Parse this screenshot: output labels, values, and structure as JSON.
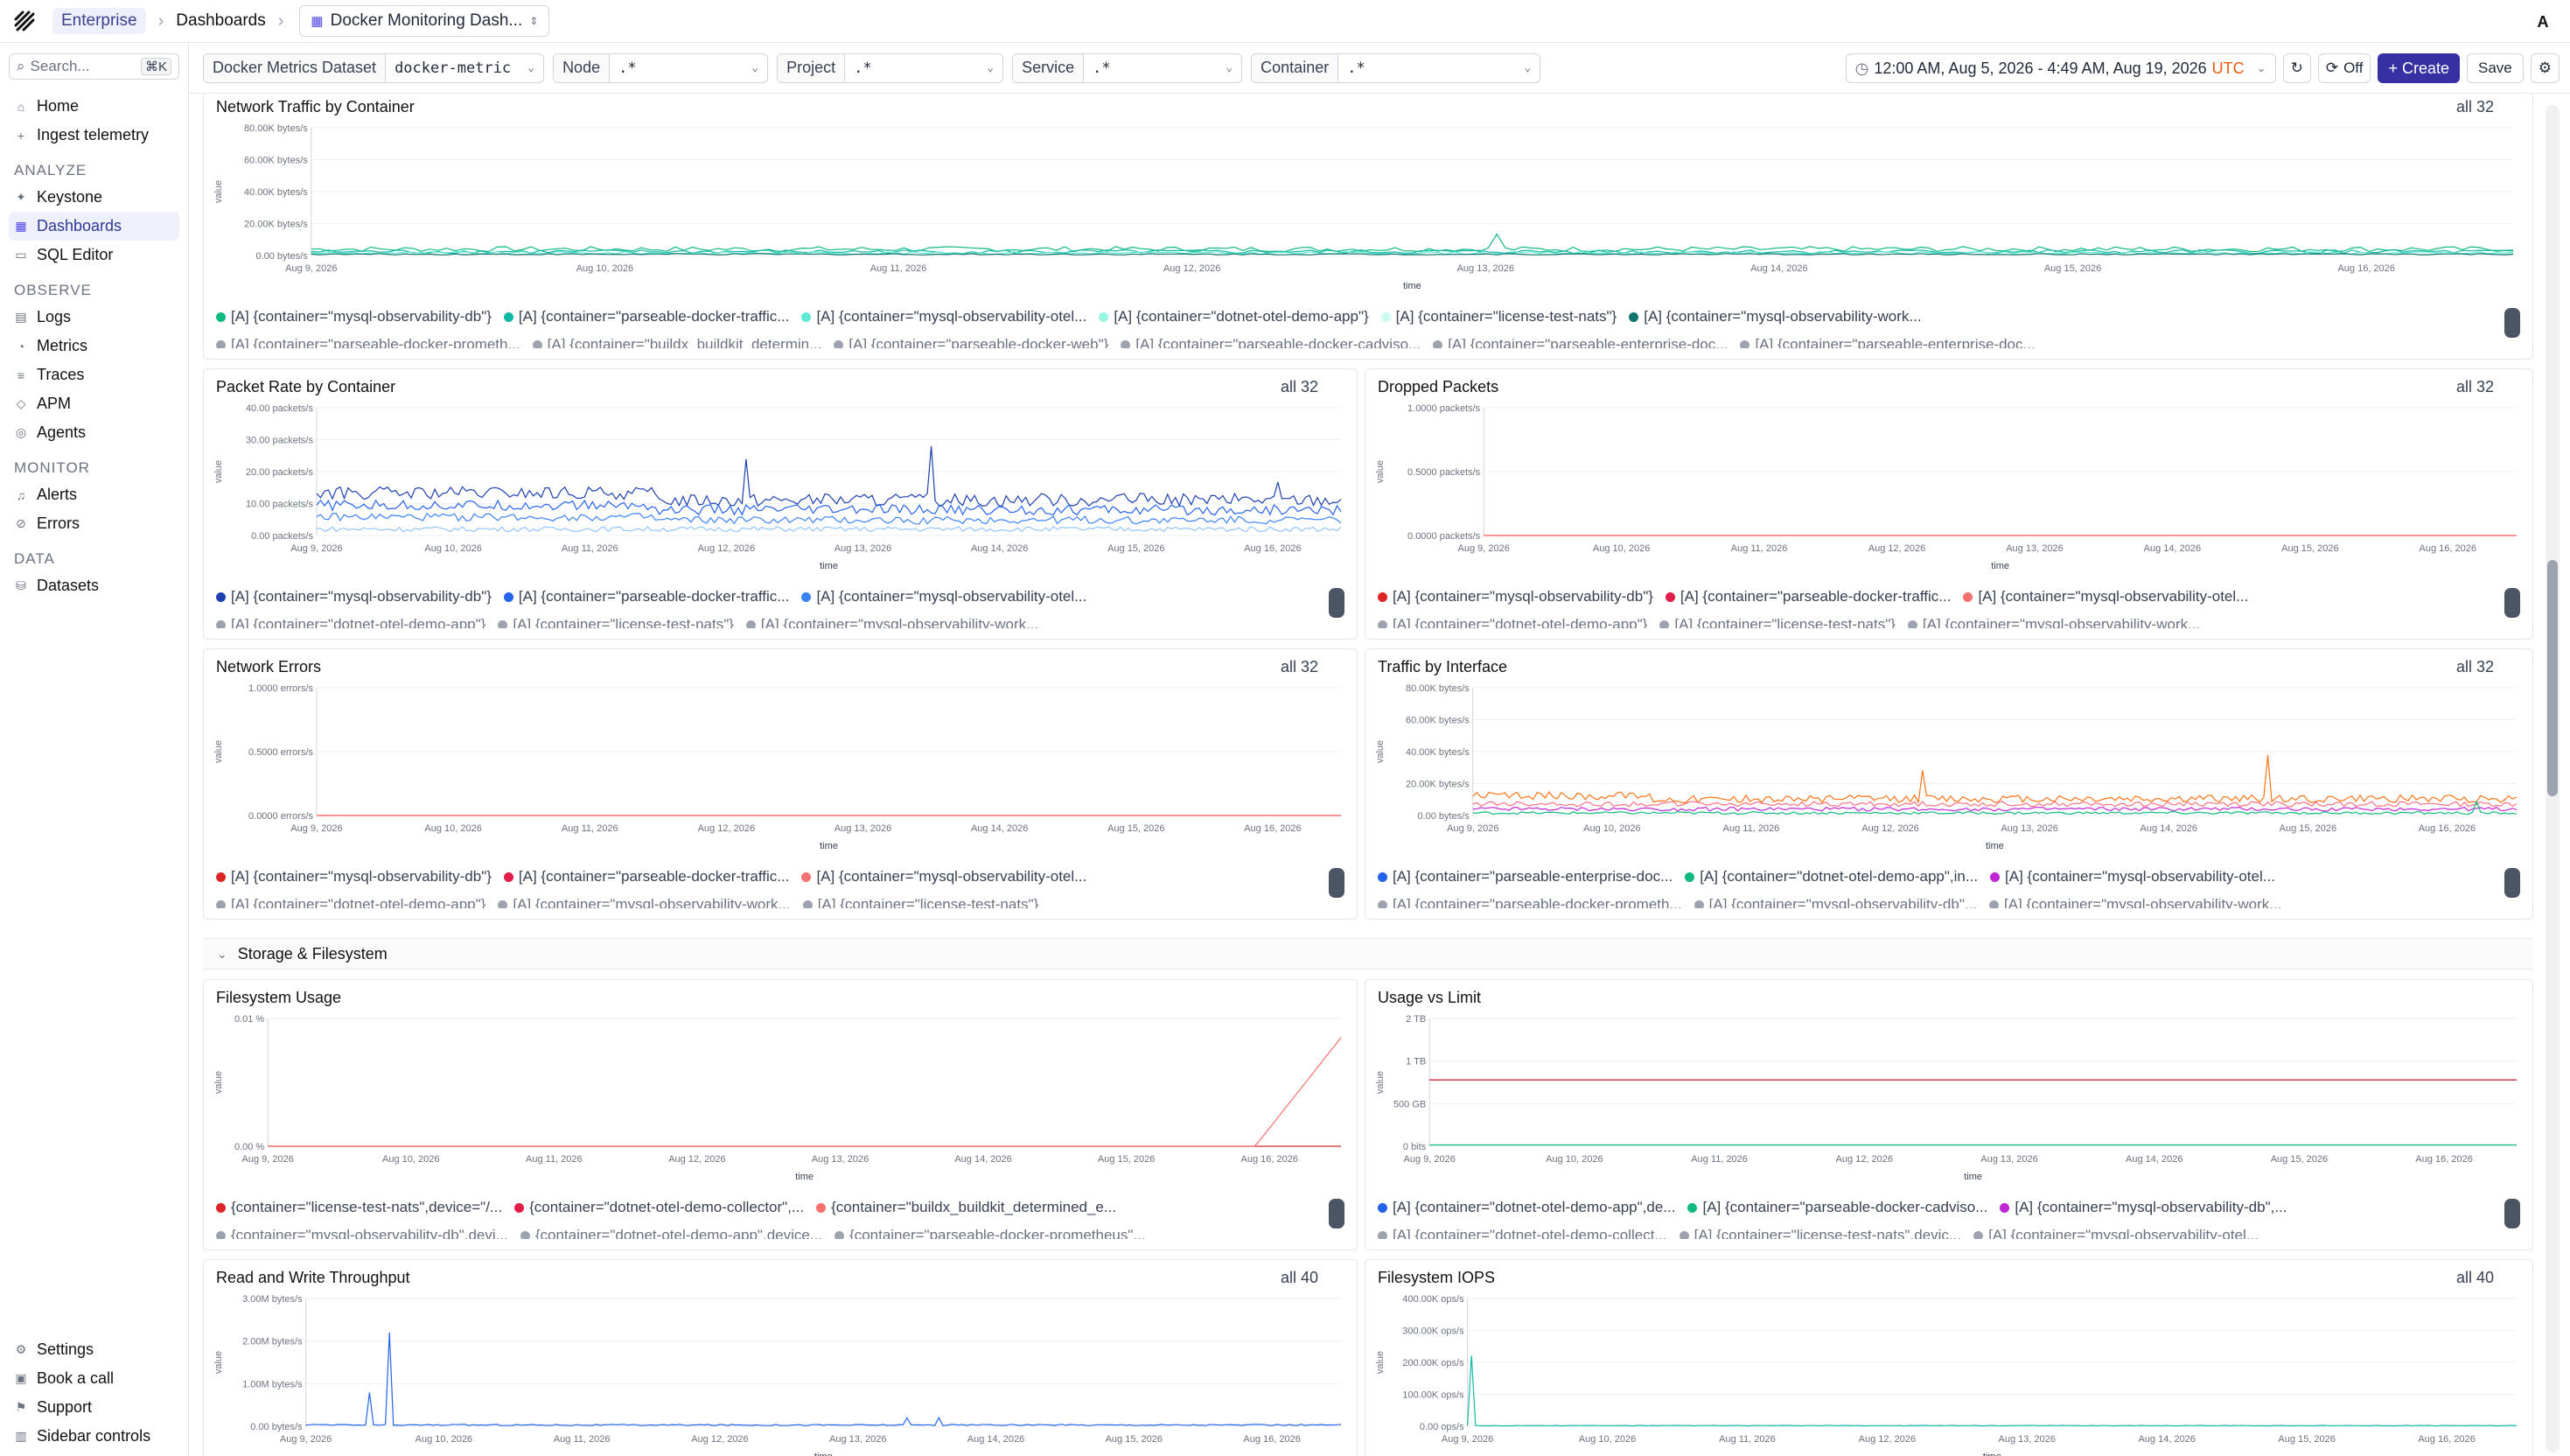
{
  "topbar": {
    "org": "Enterprise",
    "crumb": "Dashboards",
    "dashboard": "Docker Monitoring Dash...",
    "avatar": "A"
  },
  "sidebar": {
    "search_placeholder": "Search...",
    "shortcut": "⌘K",
    "items": [
      {
        "label": "Home",
        "icon": "home-icon"
      },
      {
        "label": "Ingest telemetry",
        "icon": "plus-icon"
      }
    ],
    "analyze_label": "ANALYZE",
    "analyze": [
      {
        "label": "Keystone",
        "icon": "sparkle-icon"
      },
      {
        "label": "Dashboards",
        "icon": "grid-icon",
        "active": true
      },
      {
        "label": "SQL Editor",
        "icon": "terminal-icon"
      }
    ],
    "observe_label": "OBSERVE",
    "observe": [
      {
        "label": "Logs",
        "icon": "doc-icon"
      },
      {
        "label": "Metrics",
        "icon": "chart-icon"
      },
      {
        "label": "Traces",
        "icon": "traces-icon"
      },
      {
        "label": "APM",
        "icon": "apm-icon"
      },
      {
        "label": "Agents",
        "icon": "agent-icon"
      }
    ],
    "monitor_label": "MONITOR",
    "monitor": [
      {
        "label": "Alerts",
        "icon": "bell-icon"
      },
      {
        "label": "Errors",
        "icon": "error-icon"
      }
    ],
    "data_label": "DATA",
    "data": [
      {
        "label": "Datasets",
        "icon": "database-icon"
      }
    ],
    "bottom": [
      {
        "label": "Settings",
        "icon": "gear-icon"
      },
      {
        "label": "Book a call",
        "icon": "calendar-icon"
      },
      {
        "label": "Support",
        "icon": "support-icon"
      },
      {
        "label": "Sidebar controls",
        "icon": "sidebar-icon"
      }
    ]
  },
  "filters": {
    "dataset_label": "Docker Metrics Dataset",
    "dataset_value": "docker-metric",
    "node_label": "Node",
    "node_value": ".*",
    "project_label": "Project",
    "project_value": ".*",
    "service_label": "Service",
    "service_value": ".*",
    "container_label": "Container",
    "container_value": ".*",
    "time_range": "12:00 AM, Aug 5, 2026 - 4:49 AM, Aug 19, 2026",
    "tz": "UTC",
    "refresh": "Off",
    "create": "+ Create",
    "save": "Save"
  },
  "x_ticks": [
    "Aug 9, 2026",
    "Aug 10, 2026",
    "Aug 11, 2026",
    "Aug 12, 2026",
    "Aug 13, 2026",
    "Aug 14, 2026",
    "Aug 15, 2026",
    "Aug 16, 2026"
  ],
  "x_label": "time",
  "y_label": "value",
  "section": "Storage & Filesystem",
  "panels": {
    "net_traffic": {
      "title": "Network Traffic by Container",
      "count": "all 32",
      "yticks": [
        "80.00K bytes/s",
        "60.00K bytes/s",
        "40.00K bytes/s",
        "20.00K bytes/s",
        "0.00 bytes/s"
      ],
      "legend": [
        {
          "label": "[A] {container=\"mysql-observability-db\"}",
          "color": "#10b981"
        },
        {
          "label": "[A] {container=\"parseable-docker-traffic...",
          "color": "#14b8a6"
        },
        {
          "label": "[A] {container=\"mysql-observability-otel...",
          "color": "#5eead4"
        },
        {
          "label": "[A] {container=\"dotnet-otel-demo-app\"}",
          "color": "#99f6e4"
        },
        {
          "label": "[A] {container=\"license-test-nats\"}",
          "color": "#ccfbf1"
        },
        {
          "label": "[A] {container=\"mysql-observability-work...",
          "color": "#0f766e"
        }
      ],
      "legend2": [
        "[A] {container=\"parseable-docker-prometh...",
        "[A] {container=\"buildx_buildkit_determin...",
        "[A] {container=\"parseable-docker-web\"}",
        "[A] {container=\"parseable-docker-cadviso...",
        "[A] {container=\"parseable-enterprise-doc...",
        "[A] {container=\"parseable-enterprise-doc..."
      ]
    },
    "packet_rate": {
      "title": "Packet Rate by Container",
      "count": "all 32",
      "yticks": [
        "40.00 packets/s",
        "30.00 packets/s",
        "20.00 packets/s",
        "10.00 packets/s",
        "0.00 packets/s"
      ],
      "legend": [
        {
          "label": "[A] {container=\"mysql-observability-db\"}",
          "color": "#1e40af"
        },
        {
          "label": "[A] {container=\"parseable-docker-traffic...",
          "color": "#2563eb"
        },
        {
          "label": "[A] {container=\"mysql-observability-otel...",
          "color": "#3b82f6"
        }
      ],
      "legend2": [
        "[A] {container=\"dotnet-otel-demo-app\"}",
        "[A] {container=\"license-test-nats\"}",
        "[A] {container=\"mysql-observability-work..."
      ]
    },
    "dropped": {
      "title": "Dropped Packets",
      "count": "all 32",
      "yticks": [
        "1.0000 packets/s",
        "0.5000 packets/s",
        "0.0000 packets/s"
      ],
      "legend": [
        {
          "label": "[A] {container=\"mysql-observability-db\"}",
          "color": "#dc2626"
        },
        {
          "label": "[A] {container=\"parseable-docker-traffic...",
          "color": "#e11d48"
        },
        {
          "label": "[A] {container=\"mysql-observability-otel...",
          "color": "#f87171"
        }
      ],
      "legend2": [
        "[A] {container=\"dotnet-otel-demo-app\"}",
        "[A] {container=\"license-test-nats\"}",
        "[A] {container=\"mysql-observability-work..."
      ]
    },
    "net_errors": {
      "title": "Network Errors",
      "count": "all 32",
      "yticks": [
        "1.0000 errors/s",
        "0.5000 errors/s",
        "0.0000 errors/s"
      ],
      "legend": [
        {
          "label": "[A] {container=\"mysql-observability-db\"}",
          "color": "#dc2626"
        },
        {
          "label": "[A] {container=\"parseable-docker-traffic...",
          "color": "#e11d48"
        },
        {
          "label": "[A] {container=\"mysql-observability-otel...",
          "color": "#f87171"
        }
      ],
      "legend2": [
        "[A] {container=\"dotnet-otel-demo-app\"}",
        "[A] {container=\"mysql-observability-work...",
        "[A] {container=\"license-test-nats\"}"
      ]
    },
    "traffic_iface": {
      "title": "Traffic by Interface",
      "count": "all 32",
      "yticks": [
        "80.00K bytes/s",
        "60.00K bytes/s",
        "40.00K bytes/s",
        "20.00K bytes/s",
        "0.00 bytes/s"
      ],
      "legend": [
        {
          "label": "[A] {container=\"parseable-enterprise-doc...",
          "color": "#2563eb"
        },
        {
          "label": "[A] {container=\"dotnet-otel-demo-app\",in...",
          "color": "#10b981"
        },
        {
          "label": "[A] {container=\"mysql-observability-otel...",
          "color": "#c026d3"
        }
      ],
      "legend2": [
        "[A] {container=\"parseable-docker-prometh...",
        "[A] {container=\"mysql-observability-db\"...",
        "[A] {container=\"mysql-observability-work..."
      ]
    },
    "fs_usage": {
      "title": "Filesystem Usage",
      "count": "",
      "yticks": [
        "0.01 %",
        "0.00 %"
      ],
      "legend": [
        {
          "label": "{container=\"license-test-nats\",device=\"/...",
          "color": "#dc2626"
        },
        {
          "label": "{container=\"dotnet-otel-demo-collector\",...",
          "color": "#e11d48"
        },
        {
          "label": "{container=\"buildx_buildkit_determined_e...",
          "color": "#f87171"
        }
      ],
      "legend2": [
        "{container=\"mysql-observability-db\",devi...",
        "{container=\"dotnet-otel-demo-app\",device...",
        "{container=\"parseable-docker-prometheus\"..."
      ]
    },
    "usage_limit": {
      "title": "Usage vs Limit",
      "count": "",
      "yticks": [
        "2 TB",
        "1 TB",
        "500 GB",
        "0 bits"
      ],
      "legend": [
        {
          "label": "[A] {container=\"dotnet-otel-demo-app\",de...",
          "color": "#2563eb"
        },
        {
          "label": "[A] {container=\"parseable-docker-cadviso...",
          "color": "#10b981"
        },
        {
          "label": "[A] {container=\"mysql-observability-db\",...",
          "color": "#c026d3"
        }
      ],
      "legend2": [
        "[A] {container=\"dotnet-otel-demo-collect...",
        "[A] {container=\"license-test-nats\",devic...",
        "[A] {container=\"mysql-observability-otel..."
      ]
    },
    "rw_throughput": {
      "title": "Read and Write Throughput",
      "count": "all 40",
      "yticks": [
        "3.00M bytes/s",
        "2.00M bytes/s",
        "1.00M bytes/s",
        "0.00 bytes/s"
      ]
    },
    "fs_iops": {
      "title": "Filesystem IOPS",
      "count": "all 40",
      "yticks": [
        "400.00K ops/s",
        "300.00K ops/s",
        "200.00K ops/s",
        "100.00K ops/s",
        "0.00 ops/s"
      ]
    }
  }
}
